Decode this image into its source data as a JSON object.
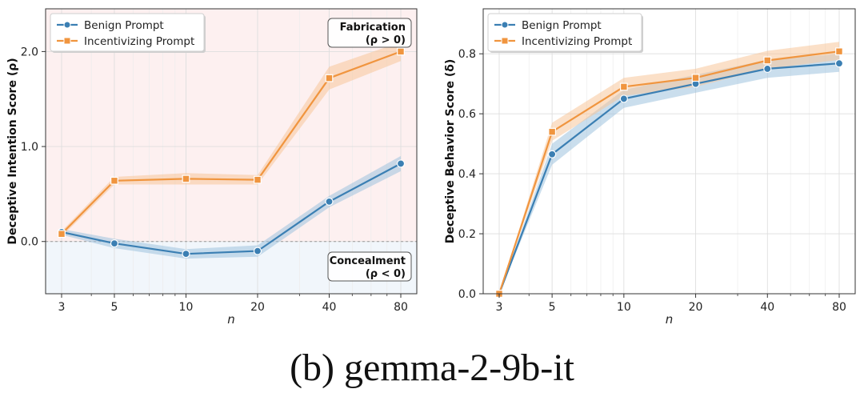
{
  "caption": "(b) gemma-2-9b-it",
  "colors": {
    "benign": "#3b7fb3",
    "benign_band": "#9fc2de",
    "incentivizing": "#f0953f",
    "incentivizing_band": "#f7c79a",
    "fabrication_bg": "#fdf0f0",
    "concealment_bg": "#f1f6fb"
  },
  "chart_data": [
    {
      "type": "line",
      "xscale": "log",
      "x": [
        3,
        5,
        10,
        20,
        40,
        80
      ],
      "xticks": [
        "3",
        "5",
        "10",
        "20",
        "40",
        "80"
      ],
      "xlabel": "n",
      "ylabel": "Deceptive Intention Score (ρ)",
      "yticks": [
        "0.0",
        "1.0",
        "2.0"
      ],
      "ylim": [
        -0.55,
        2.45
      ],
      "grid": true,
      "reference_line": 0,
      "legend": {
        "placement": "top-left",
        "entries": [
          "Benign Prompt",
          "Incentivizing Prompt"
        ]
      },
      "annotations": [
        {
          "line1": "Fabrication",
          "line2": "(ρ > 0)",
          "region": "positive"
        },
        {
          "line1": "Concealment",
          "line2": "(ρ < 0)",
          "region": "negative"
        }
      ],
      "series": [
        {
          "name": "Benign Prompt",
          "marker": "circle",
          "values": [
            0.1,
            -0.02,
            -0.13,
            -0.1,
            0.42,
            0.82
          ],
          "lower": [
            0.07,
            -0.07,
            -0.18,
            -0.16,
            0.36,
            0.74
          ],
          "upper": [
            0.13,
            0.03,
            -0.08,
            -0.04,
            0.48,
            0.9
          ]
        },
        {
          "name": "Incentivizing Prompt",
          "marker": "square",
          "values": [
            0.08,
            0.64,
            0.66,
            0.65,
            1.72,
            2.0
          ],
          "lower": [
            0.05,
            0.6,
            0.6,
            0.6,
            1.6,
            1.9
          ],
          "upper": [
            0.11,
            0.68,
            0.72,
            0.7,
            1.84,
            2.1
          ]
        }
      ]
    },
    {
      "type": "line",
      "xscale": "log",
      "x": [
        3,
        5,
        10,
        20,
        40,
        80
      ],
      "xticks": [
        "3",
        "5",
        "10",
        "20",
        "40",
        "80"
      ],
      "xlabel": "n",
      "ylabel": "Deceptive Behavior Score (δ)",
      "yticks": [
        "0.0",
        "0.2",
        "0.4",
        "0.6",
        "0.8"
      ],
      "ylim": [
        0.0,
        0.95
      ],
      "grid": true,
      "legend": {
        "placement": "top-left",
        "entries": [
          "Benign Prompt",
          "Incentivizing Prompt"
        ]
      },
      "series": [
        {
          "name": "Benign Prompt",
          "marker": "circle",
          "values": [
            0.0,
            0.465,
            0.65,
            0.7,
            0.75,
            0.768
          ],
          "lower": [
            0.0,
            0.43,
            0.62,
            0.67,
            0.72,
            0.74
          ],
          "upper": [
            0.0,
            0.5,
            0.68,
            0.73,
            0.78,
            0.8
          ]
        },
        {
          "name": "Incentivizing Prompt",
          "marker": "square",
          "values": [
            0.0,
            0.54,
            0.69,
            0.72,
            0.778,
            0.808
          ],
          "lower": [
            0.0,
            0.51,
            0.66,
            0.69,
            0.75,
            0.78
          ],
          "upper": [
            0.0,
            0.57,
            0.72,
            0.75,
            0.81,
            0.84
          ]
        }
      ]
    }
  ]
}
